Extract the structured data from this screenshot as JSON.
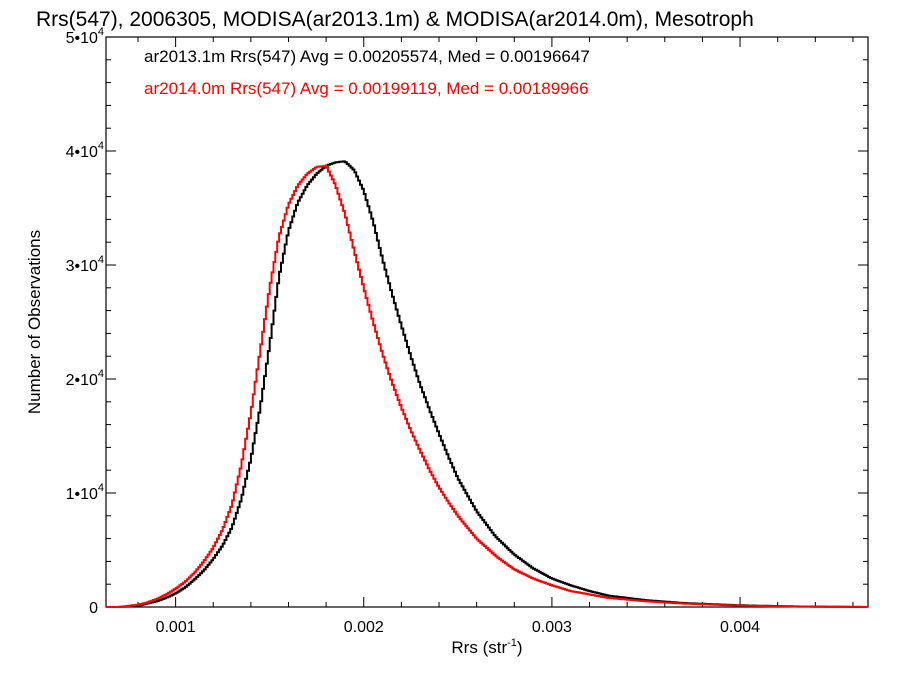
{
  "chart_data": {
    "type": "line",
    "title": "Rrs(547), 2006305, MODISA(ar2013.1m) & MODISA(ar2014.0m), Mesotroph",
    "xlabel": "Rrs (str",
    "xlabel_superscript": "-1",
    "xlabel_suffix": ")",
    "ylabel": "Number of Observations",
    "xlim": [
      0.00063,
      0.00468
    ],
    "ylim": [
      0,
      50000
    ],
    "grid": false,
    "legend_position": "top-left",
    "x_ticks": [
      {
        "value": 0.001,
        "label": "0.001"
      },
      {
        "value": 0.002,
        "label": "0.002"
      },
      {
        "value": 0.003,
        "label": "0.003"
      },
      {
        "value": 0.004,
        "label": "0.004"
      }
    ],
    "y_ticks": [
      {
        "value": 0,
        "base": "0",
        "exp": ""
      },
      {
        "value": 10000,
        "base": "1•10",
        "exp": "4"
      },
      {
        "value": 20000,
        "base": "2•10",
        "exp": "4"
      },
      {
        "value": 30000,
        "base": "3•10",
        "exp": "4"
      },
      {
        "value": 40000,
        "base": "4•10",
        "exp": "4"
      },
      {
        "value": 50000,
        "base": "5•10",
        "exp": "4"
      }
    ],
    "series": [
      {
        "name": "ar2013.1m",
        "color": "#000000",
        "x": [
          0.00063,
          0.0007,
          0.0008,
          0.00085,
          0.0009,
          0.00095,
          0.001,
          0.00105,
          0.0011,
          0.00115,
          0.0012,
          0.00125,
          0.0013,
          0.00135,
          0.0014,
          0.00145,
          0.0015,
          0.00155,
          0.0016,
          0.00165,
          0.0017,
          0.00175,
          0.0018,
          0.00185,
          0.0019,
          0.00195,
          0.002,
          0.00205,
          0.0021,
          0.00215,
          0.0022,
          0.00225,
          0.0023,
          0.00235,
          0.0024,
          0.00245,
          0.0025,
          0.0026,
          0.0027,
          0.0028,
          0.0029,
          0.003,
          0.0031,
          0.0032,
          0.0033,
          0.0035,
          0.0037,
          0.004,
          0.0043,
          0.00468
        ],
        "y": [
          0,
          0,
          100,
          300,
          500,
          800,
          1200,
          1700,
          2400,
          3200,
          4200,
          5400,
          7000,
          9500,
          13000,
          17500,
          23000,
          29000,
          33000,
          35500,
          37000,
          38000,
          38700,
          39000,
          39100,
          38300,
          36500,
          33800,
          30500,
          27500,
          24700,
          22000,
          19500,
          17300,
          15200,
          13200,
          11300,
          8400,
          6200,
          4600,
          3400,
          2500,
          1900,
          1400,
          1000,
          600,
          350,
          150,
          50,
          0
        ]
      },
      {
        "name": "ar2014.0m",
        "color": "#ff0000",
        "x": [
          0.00063,
          0.0007,
          0.0008,
          0.00085,
          0.0009,
          0.00095,
          0.001,
          0.00105,
          0.0011,
          0.00115,
          0.0012,
          0.00125,
          0.0013,
          0.00135,
          0.0014,
          0.00145,
          0.0015,
          0.00155,
          0.0016,
          0.00165,
          0.0017,
          0.00175,
          0.0018,
          0.00185,
          0.0019,
          0.00195,
          0.002,
          0.00205,
          0.0021,
          0.00215,
          0.0022,
          0.00225,
          0.0023,
          0.00235,
          0.0024,
          0.00245,
          0.0025,
          0.0026,
          0.0027,
          0.0028,
          0.0029,
          0.003,
          0.0031,
          0.0032,
          0.0033,
          0.0035,
          0.0037,
          0.004,
          0.0043,
          0.00468
        ],
        "y": [
          0,
          0,
          200,
          400,
          700,
          1100,
          1600,
          2200,
          3000,
          4000,
          5200,
          6800,
          9000,
          12500,
          17000,
          22500,
          28000,
          32500,
          35300,
          37000,
          38000,
          38600,
          38700,
          37000,
          34500,
          31200,
          28000,
          25000,
          22200,
          19700,
          17500,
          15500,
          13700,
          12000,
          10500,
          9200,
          8000,
          6000,
          4500,
          3300,
          2500,
          1900,
          1400,
          1100,
          800,
          500,
          300,
          120,
          40,
          0
        ]
      }
    ],
    "legend": [
      {
        "text": "ar2013.1m Rrs(547) Avg = 0.00205574, Med = 0.00196647",
        "color": "#000000"
      },
      {
        "text": "ar2014.0m Rrs(547) Avg = 0.00199119, Med = 0.00189966",
        "color": "#ff0000"
      }
    ]
  }
}
